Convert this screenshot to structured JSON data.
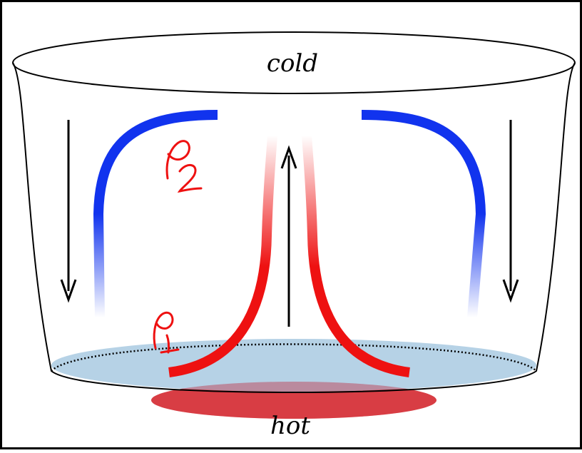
{
  "labels": {
    "top": "cold",
    "bottom": "hot",
    "rho2": "ρ2",
    "rho1": "ρ1"
  },
  "colors": {
    "cold": "#1133ee",
    "hot": "#ee1111",
    "water": "#aecde3",
    "heater": "#e04a4a",
    "outline": "#000000"
  }
}
